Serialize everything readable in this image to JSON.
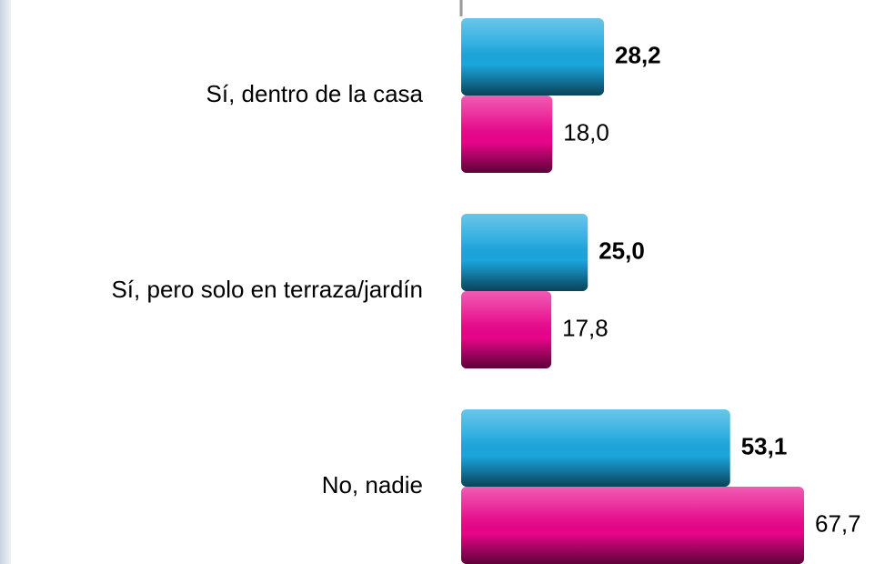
{
  "chart_data": {
    "type": "barh",
    "categories": [
      "Sí, dentro de la casa",
      "Sí, pero solo en terraza/jardín",
      "No, nadie"
    ],
    "series": [
      {
        "color": "#1aa6dd",
        "values": [
          28.2,
          25.0,
          53.1
        ],
        "value_labels": [
          "28,2",
          "25,0",
          "53,1"
        ]
      },
      {
        "color": "#e8058a",
        "values": [
          18.0,
          17.8,
          67.7
        ],
        "value_labels": [
          "18,0",
          "17,8",
          "67,7"
        ]
      }
    ]
  }
}
